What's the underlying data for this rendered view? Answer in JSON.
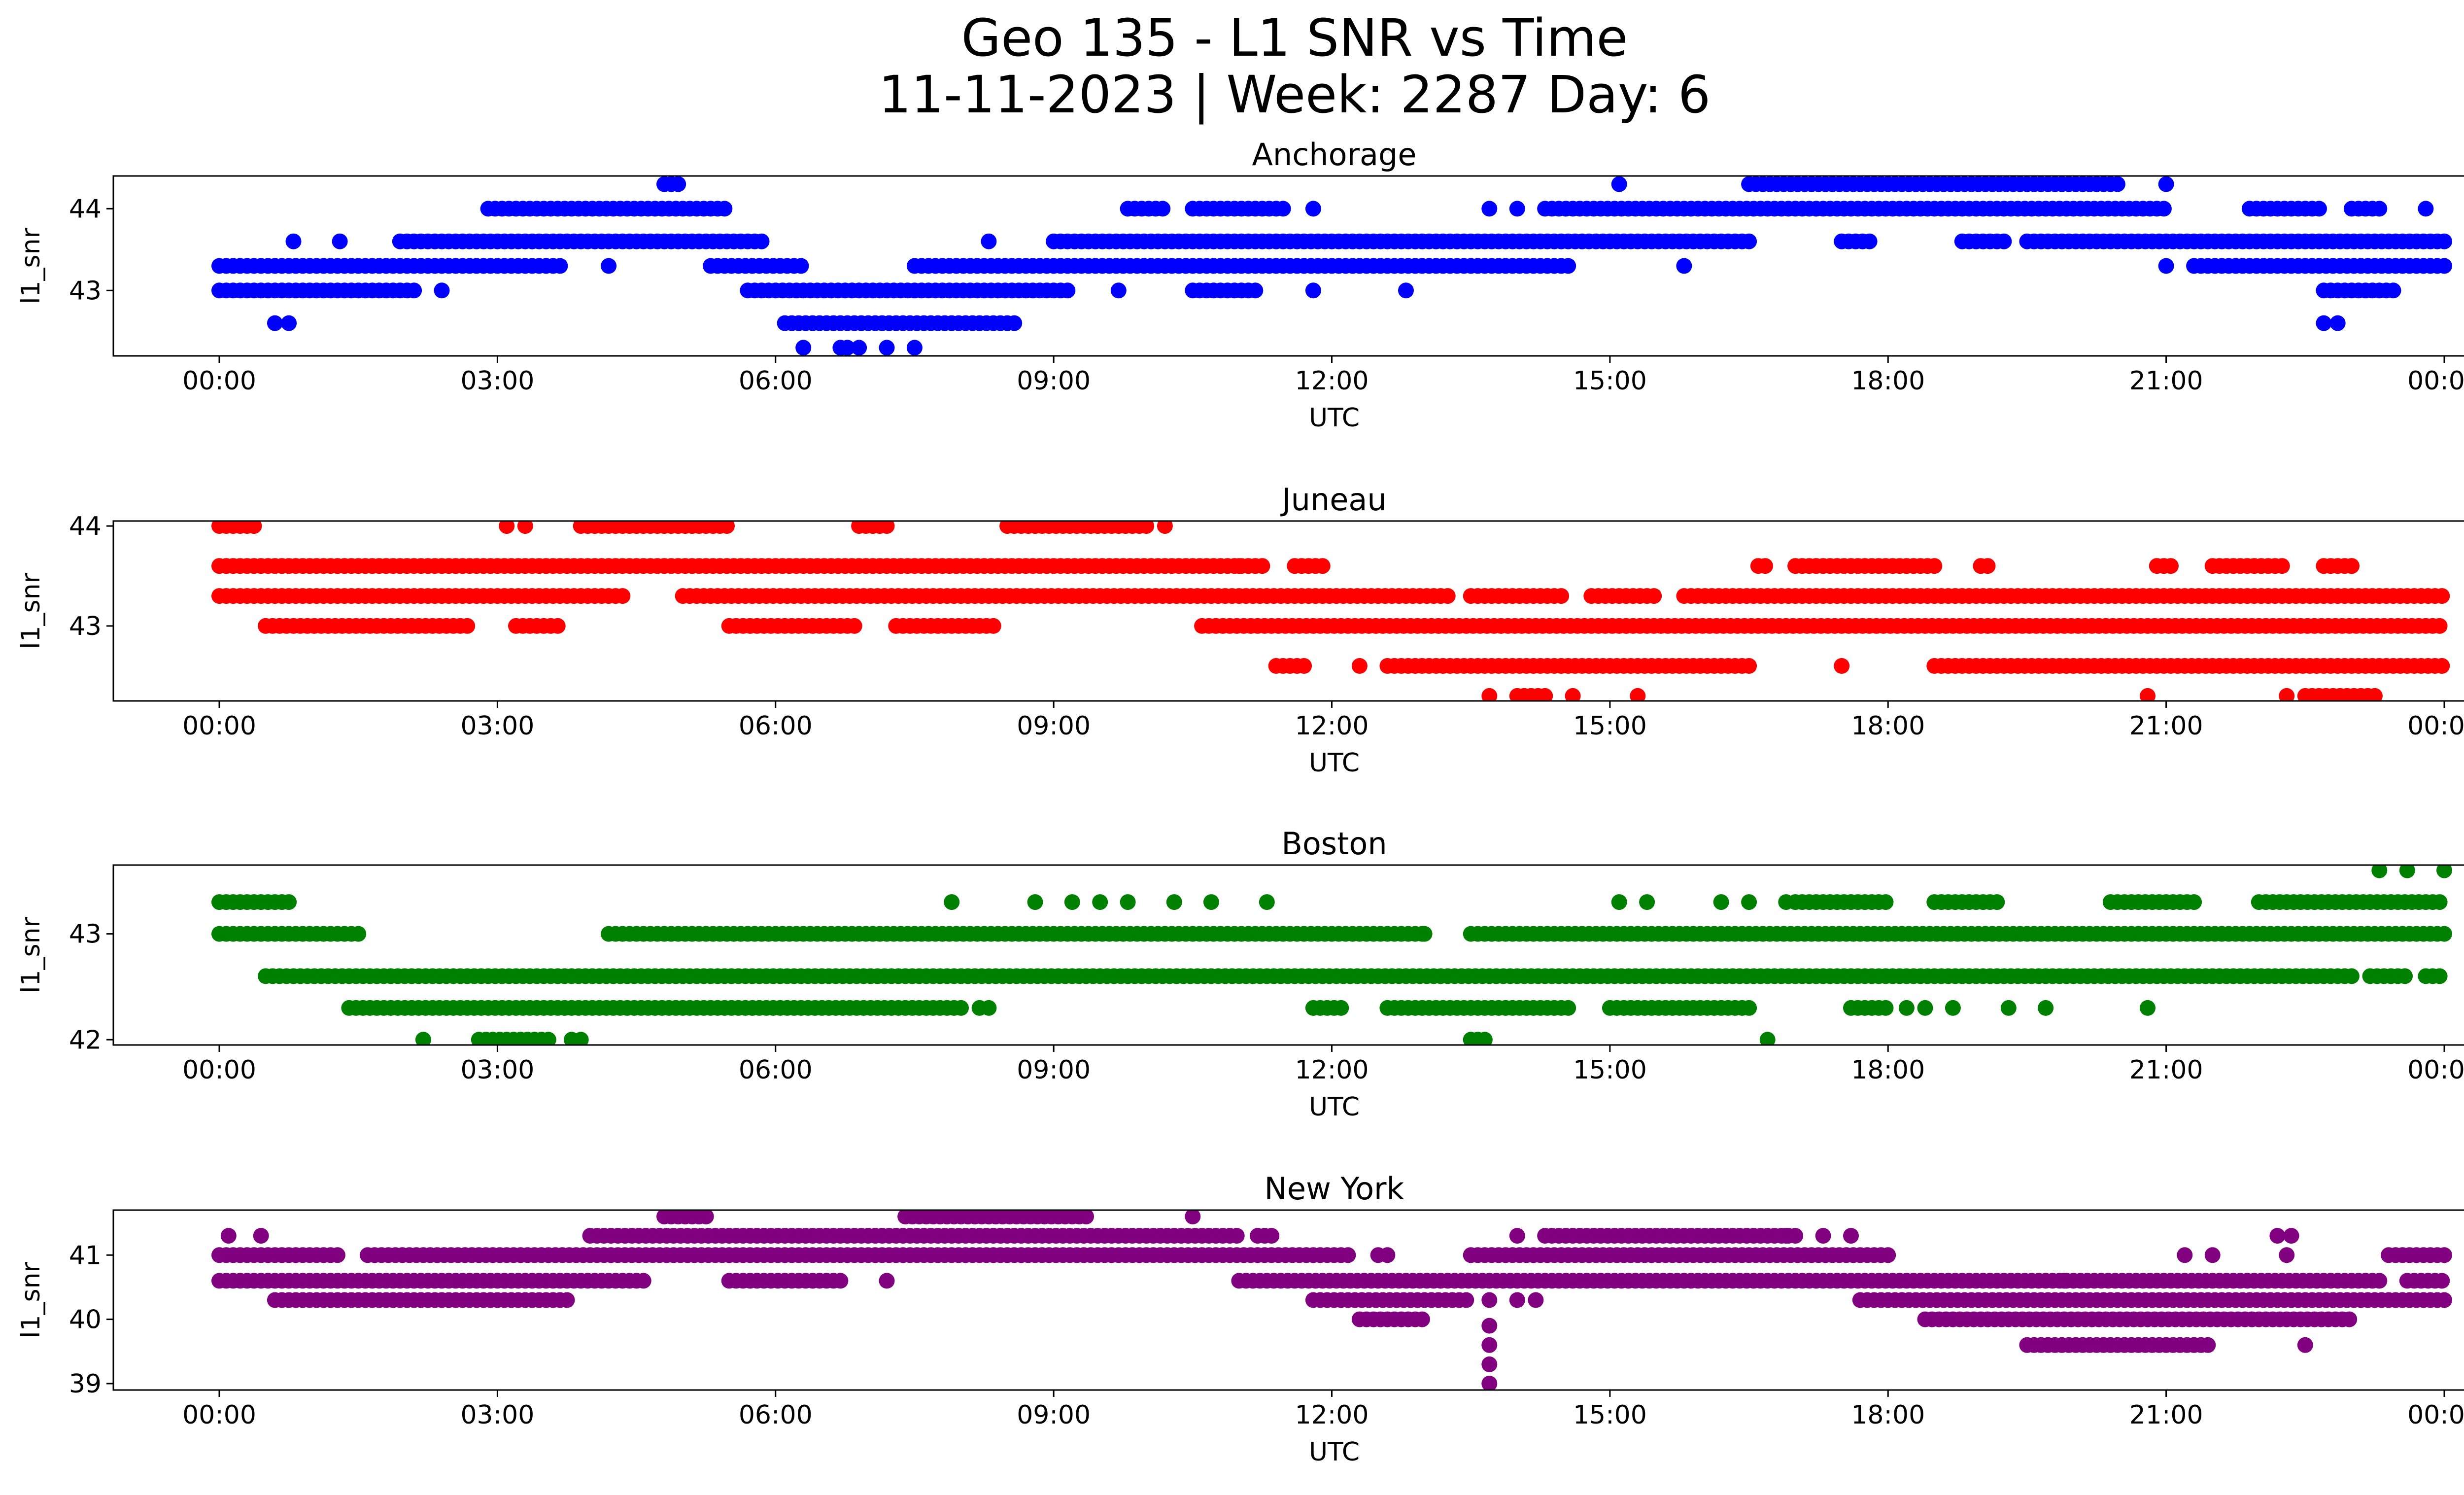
{
  "figure": {
    "title_line1": "Geo 135 - L1 SNR vs Time",
    "title_line2": "11-11-2023 | Week: 2287 Day: 6"
  },
  "chart_data": [
    {
      "type": "scatter",
      "title": "Anchorage",
      "xlabel": "UTC",
      "ylabel": "l1_snr",
      "color": "#0000ff",
      "x_ticks": [
        "00:00",
        "03:00",
        "06:00",
        "09:00",
        "12:00",
        "15:00",
        "18:00",
        "21:00",
        "00:00"
      ],
      "y_ticks": [
        "43",
        "44"
      ],
      "ylim": [
        42.2,
        44.4
      ],
      "runs": [
        {
          "y": 43.3,
          "segments": [
            [
              0.0,
              3.7
            ],
            [
              5.3,
              6.3
            ],
            [
              7.5,
              14.6
            ],
            [
              21.0,
              21.05
            ],
            [
              21.3,
              24.0
            ]
          ]
        },
        {
          "y": 43.0,
          "segments": [
            [
              0.0,
              2.1
            ],
            [
              5.7,
              9.2
            ],
            [
              10.5,
              11.2
            ],
            [
              22.7,
              23.5
            ]
          ]
        },
        {
          "y": 43.6,
          "segments": [
            [
              1.95,
              5.9
            ],
            [
              9.0,
              16.5
            ],
            [
              17.5,
              17.8
            ],
            [
              18.8,
              19.3
            ],
            [
              19.5,
              24.0
            ]
          ]
        },
        {
          "y": 44.0,
          "segments": [
            [
              2.9,
              5.5
            ],
            [
              9.8,
              10.2
            ],
            [
              10.5,
              11.5
            ],
            [
              14.3,
              21.0
            ],
            [
              21.9,
              22.7
            ],
            [
              23.0,
              23.3
            ]
          ]
        },
        {
          "y": 42.6,
          "segments": [
            [
              6.1,
              8.6
            ]
          ]
        },
        {
          "y": 42.3,
          "segments": [
            [
              6.3,
              6.35
            ],
            [
              6.7,
              6.8
            ],
            [
              6.9,
              6.95
            ],
            [
              7.2,
              7.25
            ],
            [
              7.5,
              7.55
            ]
          ]
        },
        {
          "y": 44.3,
          "segments": [
            [
              4.8,
              5.0
            ],
            [
              16.5,
              20.5
            ]
          ]
        }
      ],
      "points": [
        [
          0.6,
          42.6
        ],
        [
          0.75,
          42.6
        ],
        [
          22.7,
          42.6
        ],
        [
          22.85,
          42.6
        ],
        [
          0.8,
          43.6
        ],
        [
          1.3,
          43.6
        ],
        [
          2.4,
          43.0
        ],
        [
          4.2,
          43.3
        ],
        [
          8.3,
          43.6
        ],
        [
          11.8,
          44.0
        ],
        [
          12.8,
          43.0
        ],
        [
          13.7,
          44.0
        ],
        [
          14.0,
          44.0
        ],
        [
          15.1,
          44.3
        ],
        [
          15.8,
          43.3
        ],
        [
          21.0,
          44.3
        ],
        [
          23.8,
          44.0
        ],
        [
          9.7,
          43.0
        ],
        [
          11.8,
          43.0
        ]
      ]
    },
    {
      "type": "scatter",
      "title": "Juneau",
      "xlabel": "UTC",
      "ylabel": "l1_snr",
      "color": "#ff0000",
      "x_ticks": [
        "00:00",
        "03:00",
        "06:00",
        "09:00",
        "12:00",
        "15:00",
        "18:00",
        "21:00",
        "00:00"
      ],
      "y_ticks": [
        "43",
        "44"
      ],
      "ylim": [
        42.25,
        44.05
      ],
      "runs": [
        {
          "y": 43.6,
          "segments": [
            [
              0.0,
              11.3
            ],
            [
              11.6,
              11.9
            ],
            [
              16.6,
              16.7
            ],
            [
              17.0,
              18.5
            ],
            [
              19.0,
              19.1
            ],
            [
              20.9,
              21.1
            ],
            [
              21.5,
              22.3
            ],
            [
              22.7,
              23.0
            ]
          ]
        },
        {
          "y": 43.3,
          "segments": [
            [
              0.0,
              4.4
            ],
            [
              5.0,
              13.3
            ],
            [
              13.5,
              14.5
            ],
            [
              14.8,
              15.5
            ],
            [
              15.8,
              24.0
            ]
          ]
        },
        {
          "y": 43.0,
          "segments": [
            [
              0.5,
              2.7
            ],
            [
              3.2,
              3.7
            ],
            [
              5.5,
              6.9
            ],
            [
              7.3,
              8.4
            ],
            [
              10.6,
              24.0
            ]
          ]
        },
        {
          "y": 44.0,
          "segments": [
            [
              0.0,
              0.4
            ],
            [
              3.9,
              5.5
            ],
            [
              6.9,
              7.2
            ],
            [
              8.5,
              10.0
            ]
          ]
        },
        {
          "y": 42.6,
          "segments": [
            [
              11.4,
              11.7
            ],
            [
              12.6,
              16.5
            ],
            [
              18.5,
              24.0
            ]
          ]
        },
        {
          "y": 42.3,
          "segments": [
            [
              13.7,
              13.75
            ],
            [
              14.0,
              14.3
            ],
            [
              14.6,
              14.65
            ],
            [
              15.3,
              15.35
            ],
            [
              20.8,
              20.85
            ],
            [
              22.3,
              22.35
            ],
            [
              22.5,
              23.3
            ]
          ]
        }
      ],
      "points": [
        [
          3.1,
          44.0
        ],
        [
          3.3,
          44.0
        ],
        [
          10.2,
          44.0
        ],
        [
          11.0,
          43.6
        ],
        [
          12.3,
          42.6
        ],
        [
          17.5,
          42.6
        ],
        [
          23.0,
          43.6
        ]
      ]
    },
    {
      "type": "scatter",
      "title": "Boston",
      "xlabel": "UTC",
      "ylabel": "l1_snr",
      "color": "#008000",
      "x_ticks": [
        "00:00",
        "03:00",
        "06:00",
        "09:00",
        "12:00",
        "15:00",
        "18:00",
        "21:00",
        "00:00"
      ],
      "y_ticks": [
        "42",
        "43"
      ],
      "ylim": [
        41.95,
        43.65
      ],
      "runs": [
        {
          "y": 43.3,
          "segments": [
            [
              0.0,
              0.8
            ],
            [
              17.0,
              18.0
            ],
            [
              18.5,
              19.2
            ],
            [
              20.4,
              21.3
            ],
            [
              22.0,
              24.0
            ]
          ]
        },
        {
          "y": 43.0,
          "segments": [
            [
              0.0,
              1.5
            ],
            [
              4.2,
              13.0
            ],
            [
              13.5,
              24.0
            ]
          ]
        },
        {
          "y": 42.6,
          "segments": [
            [
              0.5,
              23.0
            ],
            [
              23.2,
              23.6
            ],
            [
              23.8,
              24.0
            ]
          ]
        },
        {
          "y": 42.3,
          "segments": [
            [
              1.4,
              8.0
            ],
            [
              11.8,
              12.1
            ],
            [
              12.6,
              14.6
            ],
            [
              15.0,
              16.5
            ],
            [
              17.6,
              18.0
            ]
          ]
        },
        {
          "y": 42.0,
          "segments": [
            [
              2.8,
              3.6
            ],
            [
              13.5,
              13.7
            ]
          ]
        }
      ],
      "points": [
        [
          2.2,
          42.0
        ],
        [
          3.8,
          42.0
        ],
        [
          3.9,
          42.0
        ],
        [
          8.2,
          42.3
        ],
        [
          8.3,
          42.3
        ],
        [
          7.9,
          43.3
        ],
        [
          8.8,
          43.3
        ],
        [
          9.2,
          43.3
        ],
        [
          9.5,
          43.3
        ],
        [
          9.8,
          43.3
        ],
        [
          10.3,
          43.3
        ],
        [
          10.7,
          43.3
        ],
        [
          11.3,
          43.3
        ],
        [
          15.1,
          43.3
        ],
        [
          15.4,
          43.3
        ],
        [
          16.2,
          43.3
        ],
        [
          16.5,
          43.3
        ],
        [
          16.7,
          42.0
        ],
        [
          16.9,
          43.3
        ],
        [
          18.2,
          42.3
        ],
        [
          18.4,
          42.3
        ],
        [
          18.7,
          42.3
        ],
        [
          19.3,
          42.3
        ],
        [
          19.7,
          42.3
        ],
        [
          20.8,
          42.3
        ],
        [
          23.3,
          43.6
        ],
        [
          23.6,
          43.6
        ],
        [
          24.0,
          43.6
        ],
        [
          13.0,
          43.0
        ]
      ]
    },
    {
      "type": "scatter",
      "title": "New York",
      "xlabel": "UTC",
      "ylabel": "l1_snr",
      "color": "#800080",
      "x_ticks": [
        "00:00",
        "03:00",
        "06:00",
        "09:00",
        "12:00",
        "15:00",
        "18:00",
        "21:00",
        "00:00"
      ],
      "y_ticks": [
        "39",
        "40",
        "41"
      ],
      "ylim": [
        38.9,
        41.7
      ],
      "runs": [
        {
          "y": 41.3,
          "segments": [
            [
              4.0,
              11.0
            ],
            [
              14.3,
              17.0
            ],
            [
              11.2,
              11.4
            ]
          ]
        },
        {
          "y": 41.0,
          "segments": [
            [
              0.0,
              1.3
            ],
            [
              1.6,
              12.2
            ],
            [
              13.5,
              18.0
            ],
            [
              23.4,
              24.0
            ]
          ]
        },
        {
          "y": 40.6,
          "segments": [
            [
              0.0,
              4.6
            ],
            [
              5.5,
              6.7
            ],
            [
              11.0,
              23.3
            ],
            [
              23.6,
              24.0
            ]
          ]
        },
        {
          "y": 40.3,
          "segments": [
            [
              0.6,
              3.8
            ],
            [
              11.8,
              13.5
            ],
            [
              17.7,
              24.0
            ]
          ]
        },
        {
          "y": 40.0,
          "segments": [
            [
              12.3,
              13.0
            ],
            [
              18.4,
              23.0
            ]
          ]
        },
        {
          "y": 39.6,
          "segments": [
            [
              19.5,
              21.5
            ]
          ]
        },
        {
          "y": 41.6,
          "segments": [
            [
              4.8,
              5.3
            ],
            [
              7.4,
              9.4
            ]
          ]
        }
      ],
      "points": [
        [
          0.1,
          41.3
        ],
        [
          0.45,
          41.3
        ],
        [
          7.2,
          40.6
        ],
        [
          10.5,
          41.6
        ],
        [
          12.5,
          41.0
        ],
        [
          12.6,
          41.0
        ],
        [
          13.7,
          40.3
        ],
        [
          13.7,
          39.9
        ],
        [
          13.7,
          39.6
        ],
        [
          13.7,
          39.3
        ],
        [
          13.7,
          39.0
        ],
        [
          14.0,
          40.3
        ],
        [
          14.2,
          40.3
        ],
        [
          14.0,
          41.3
        ],
        [
          19.9,
          40.6
        ],
        [
          21.2,
          41.0
        ],
        [
          21.5,
          41.0
        ],
        [
          22.3,
          41.0
        ],
        [
          22.5,
          39.6
        ],
        [
          22.2,
          41.3
        ],
        [
          22.35,
          41.3
        ],
        [
          17.6,
          41.3
        ],
        [
          17.3,
          41.3
        ],
        [
          16.9,
          41.3
        ]
      ]
    }
  ]
}
